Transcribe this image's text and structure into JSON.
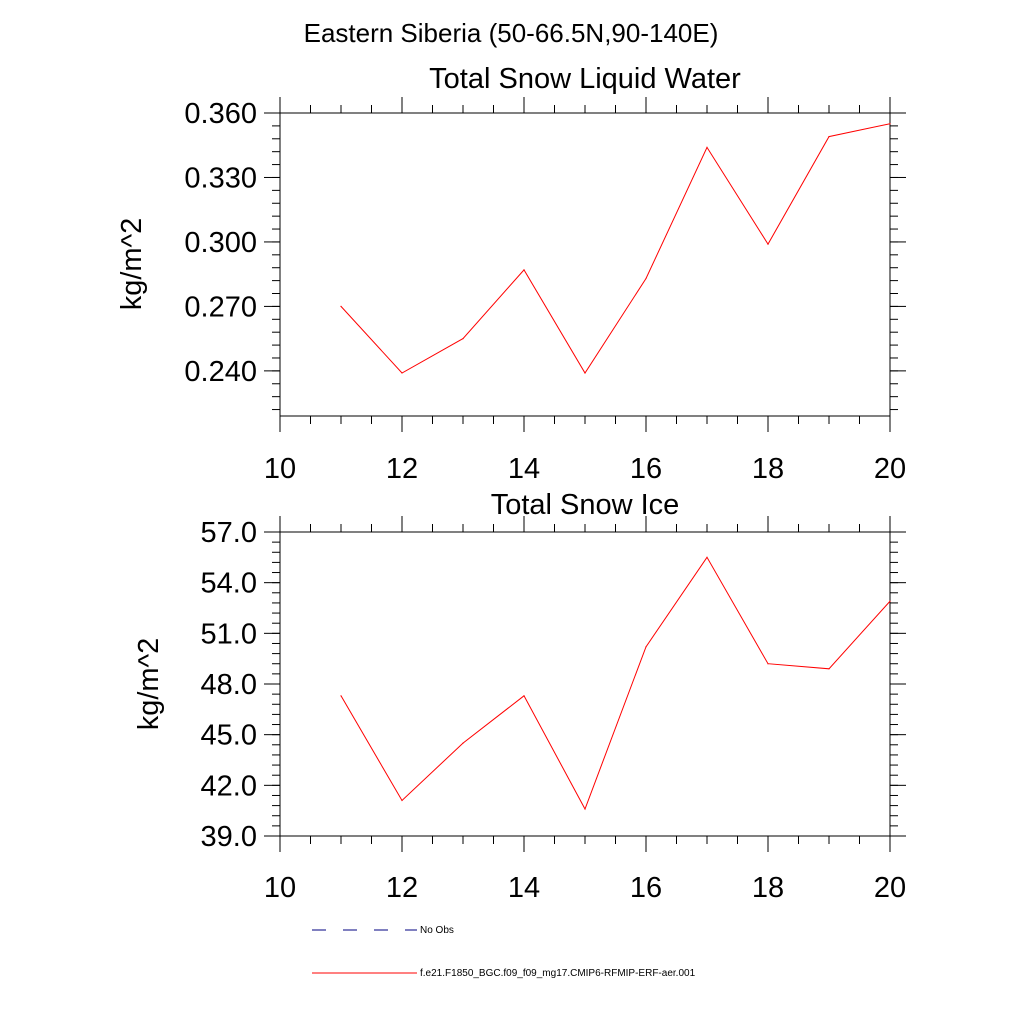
{
  "figure": {
    "title": "Eastern Siberia (50-66.5N,90-140E)"
  },
  "legend": [
    {
      "label": "No Obs",
      "color": "#000080",
      "dash": "dashed"
    },
    {
      "label": "f.e21.F1850_BGC.f09_f09_mg17.CMIP6-RFMIP-ERF-aer.001",
      "color": "#ff0000",
      "dash": "solid"
    }
  ],
  "chart_data": [
    {
      "type": "line",
      "title": "Total Snow Liquid Water",
      "xlabel": "",
      "ylabel": "kg/m^2",
      "xlim": [
        10,
        20
      ],
      "ylim": [
        0.219,
        0.36
      ],
      "xticks": [
        "10",
        "12",
        "14",
        "16",
        "18",
        "20"
      ],
      "yticks": [
        "0.240",
        "0.270",
        "0.300",
        "0.330",
        "0.360"
      ],
      "grid": false,
      "series": [
        {
          "color": "#ff0000",
          "x": [
            11,
            12,
            13,
            14,
            15,
            16,
            17,
            18,
            19,
            20
          ],
          "values": [
            0.27,
            0.239,
            0.255,
            0.287,
            0.239,
            0.283,
            0.344,
            0.299,
            0.349,
            0.355
          ]
        }
      ]
    },
    {
      "type": "line",
      "title": "Total Snow Ice",
      "xlabel": "",
      "ylabel": "kg/m^2",
      "xlim": [
        10,
        20
      ],
      "ylim": [
        39.0,
        57.0
      ],
      "xticks": [
        "10",
        "12",
        "14",
        "16",
        "18",
        "20"
      ],
      "yticks": [
        "39.0",
        "42.0",
        "45.0",
        "48.0",
        "51.0",
        "54.0",
        "57.0"
      ],
      "grid": false,
      "series": [
        {
          "color": "#ff0000",
          "x": [
            11,
            12,
            13,
            14,
            15,
            16,
            17,
            18,
            19,
            20
          ],
          "values": [
            47.3,
            41.1,
            44.5,
            47.3,
            40.6,
            50.2,
            55.5,
            49.2,
            48.9,
            52.9
          ]
        }
      ]
    }
  ]
}
